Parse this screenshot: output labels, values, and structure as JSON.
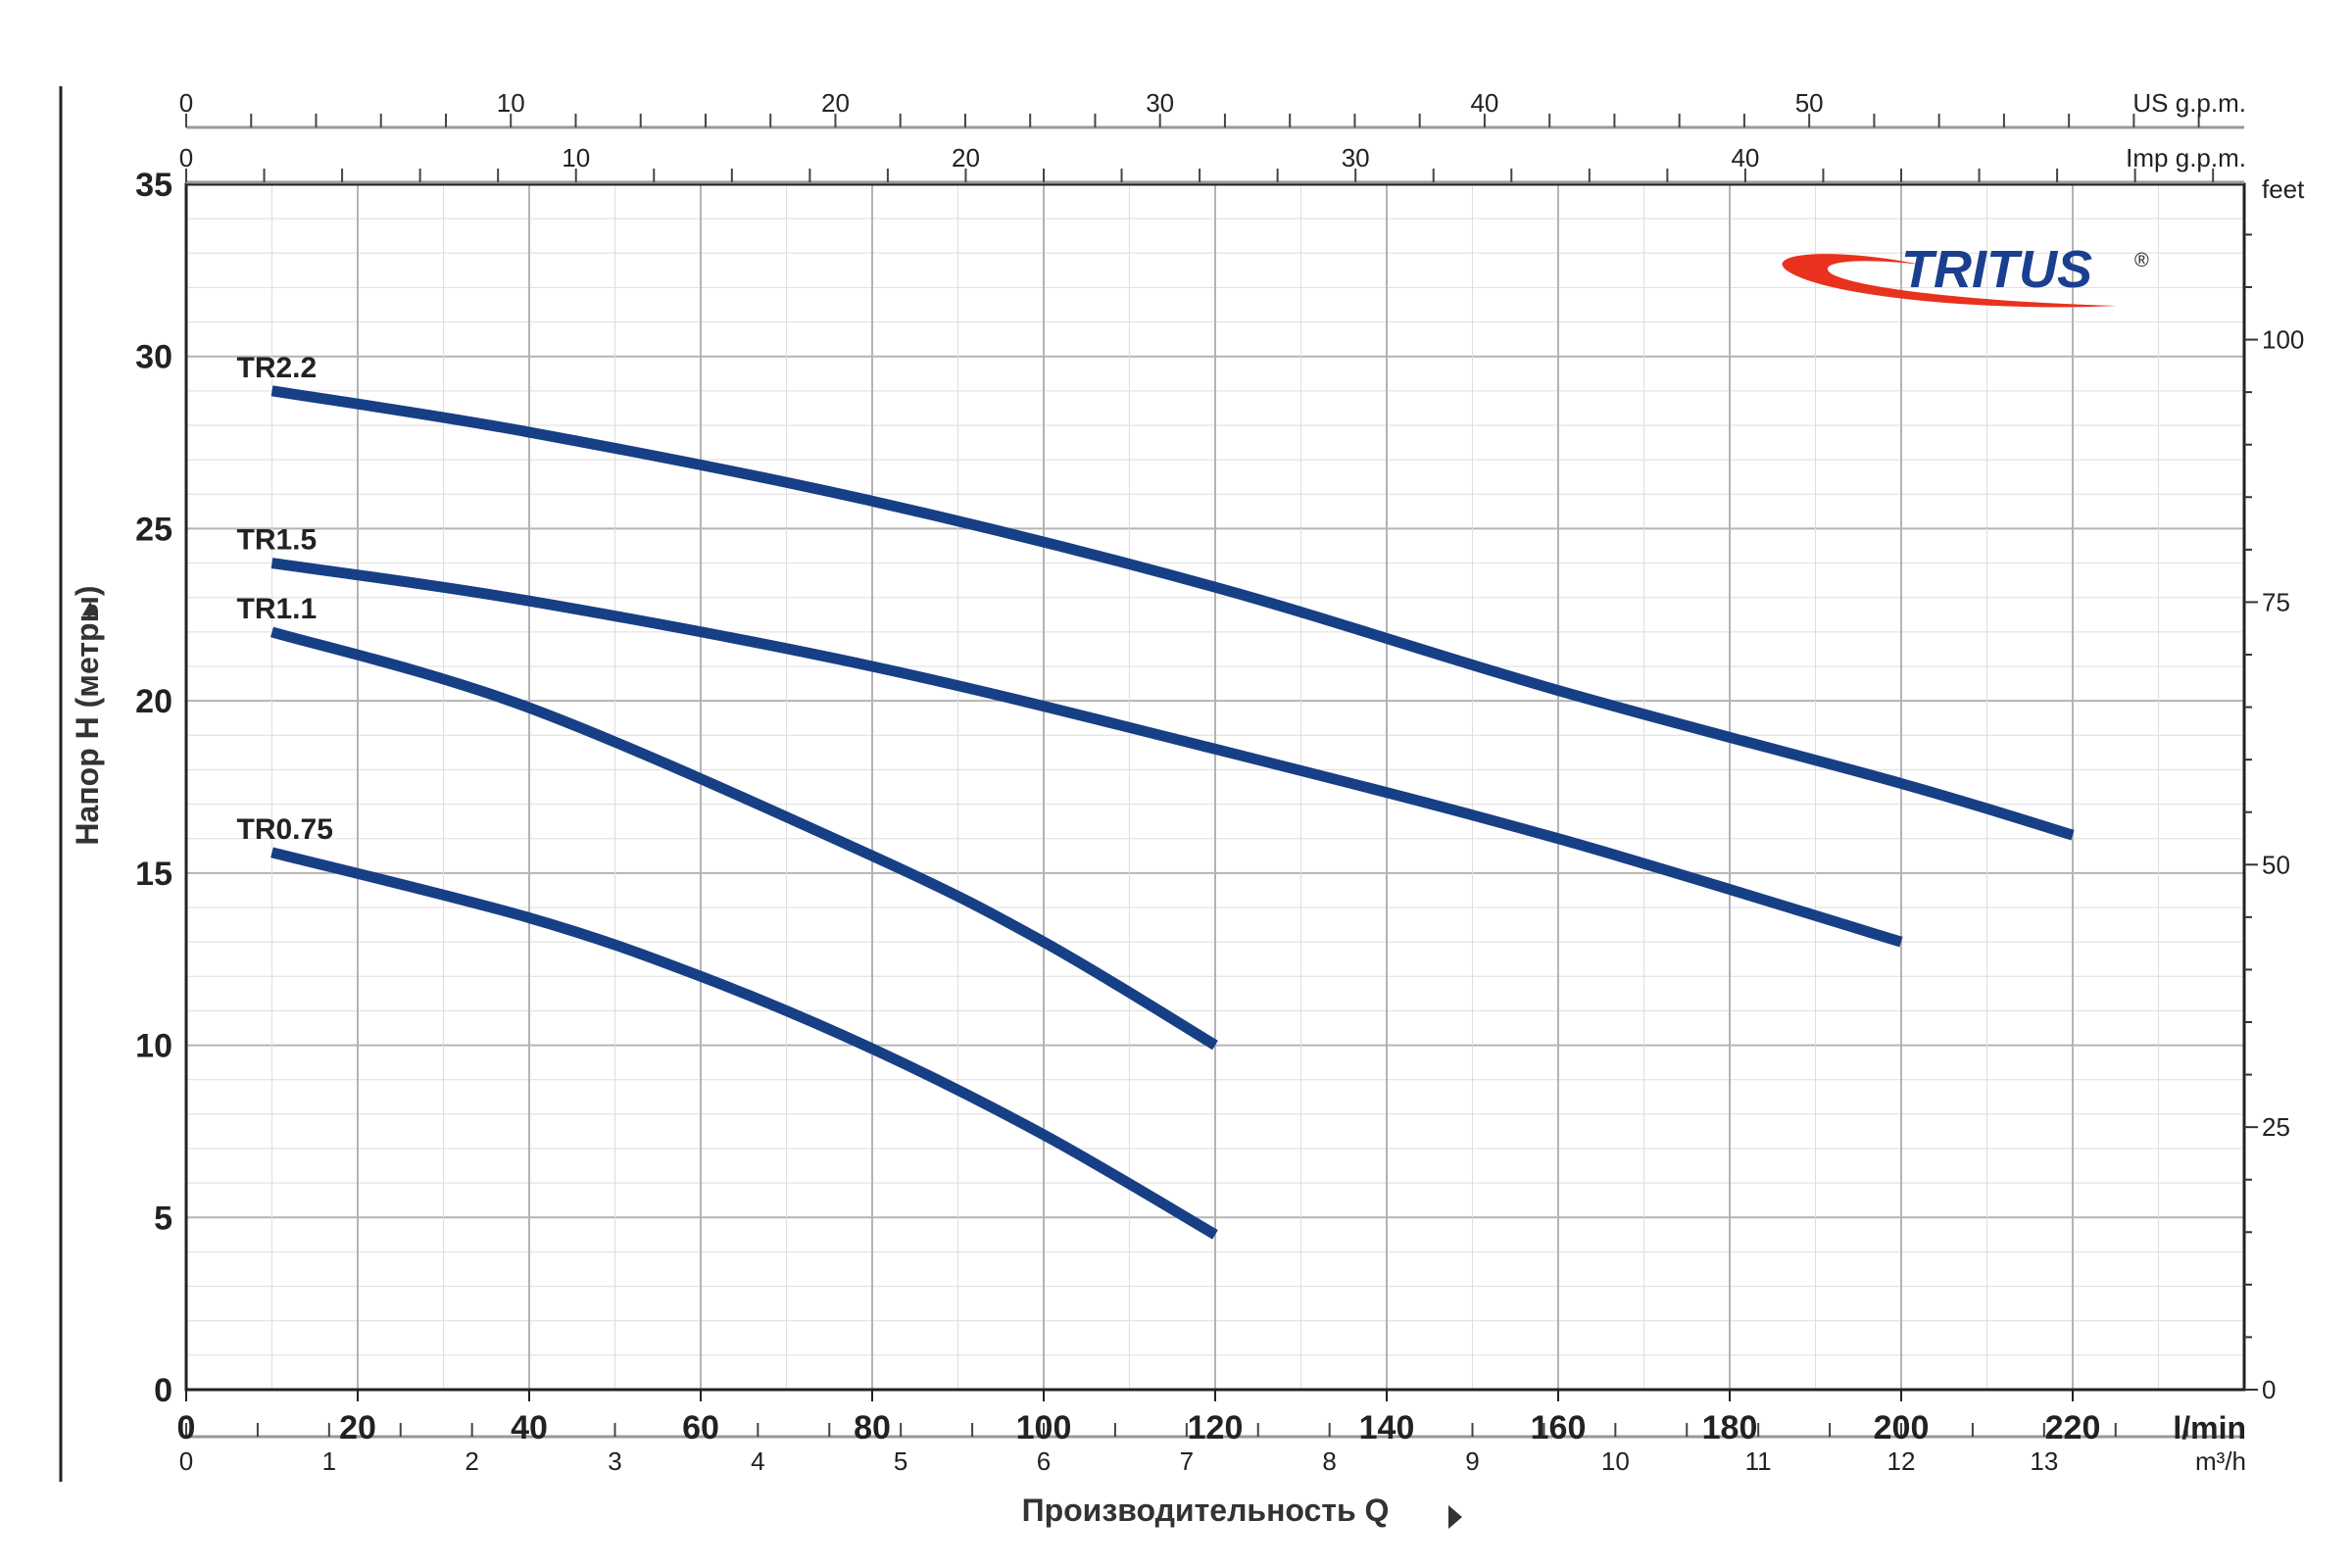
{
  "chart_data": {
    "type": "line",
    "logo": {
      "text": "TRITUS",
      "mark": "®",
      "swoosh_color": "#e8321d",
      "text_color": "#1b3f8f"
    },
    "ylabel": "Напор H (метры)",
    "xlabel": "Производительность Q",
    "ylim": [
      0,
      35
    ],
    "y_ticks": [
      "0",
      "5",
      "10",
      "15",
      "20",
      "25",
      "30",
      "35"
    ],
    "x_lmin": {
      "unit": "l/min",
      "range": [
        0,
        240
      ],
      "ticks": [
        {
          "v": 0,
          "t": "0"
        },
        {
          "v": 20,
          "t": "20"
        },
        {
          "v": 40,
          "t": "40"
        },
        {
          "v": 60,
          "t": "60"
        },
        {
          "v": 80,
          "t": "80"
        },
        {
          "v": 100,
          "t": "100"
        },
        {
          "v": 120,
          "t": "120"
        },
        {
          "v": 140,
          "t": "140"
        },
        {
          "v": 160,
          "t": "160"
        },
        {
          "v": 180,
          "t": "180"
        },
        {
          "v": 200,
          "t": "200"
        },
        {
          "v": 220,
          "t": "220"
        }
      ]
    },
    "x_m3h": {
      "unit": "m³/h",
      "range": [
        0,
        14.4
      ],
      "ticks": [
        "0",
        "1",
        "2",
        "3",
        "4",
        "5",
        "6",
        "7",
        "8",
        "9",
        "10",
        "11",
        "12",
        "13"
      ]
    },
    "x_usgpm": {
      "unit": "US g.p.m.",
      "range": [
        0,
        63.4
      ],
      "ticks": [
        "0",
        "10",
        "20",
        "30",
        "40",
        "50"
      ]
    },
    "x_impgpm": {
      "unit": "Imp g.p.m.",
      "range": [
        0,
        52.8
      ],
      "ticks": [
        "0",
        "10",
        "20",
        "30",
        "40"
      ]
    },
    "y_feet": {
      "unit": "feet",
      "range": [
        0,
        114.8
      ],
      "ticks": [
        "0",
        "25",
        "50",
        "75",
        "100"
      ]
    },
    "grid": true,
    "series": [
      {
        "name": "TR2.2",
        "color": "#173f86",
        "x": [
          10,
          40,
          80,
          120,
          160,
          200,
          220
        ],
        "y": [
          29,
          27.8,
          25.8,
          23.3,
          20.3,
          17.6,
          16.1
        ]
      },
      {
        "name": "TR1.5",
        "color": "#173f86",
        "x": [
          10,
          40,
          80,
          120,
          160,
          200
        ],
        "y": [
          24,
          22.9,
          21,
          18.6,
          16,
          13
        ]
      },
      {
        "name": "TR1.1",
        "color": "#173f86",
        "x": [
          10,
          40,
          80,
          100,
          120
        ],
        "y": [
          22,
          19.8,
          15.5,
          13,
          10
        ]
      },
      {
        "name": "TR0.75",
        "color": "#173f86",
        "x": [
          10,
          40,
          60,
          80,
          100,
          120
        ],
        "y": [
          15.6,
          13.7,
          12,
          9.9,
          7.4,
          4.5
        ]
      }
    ]
  }
}
